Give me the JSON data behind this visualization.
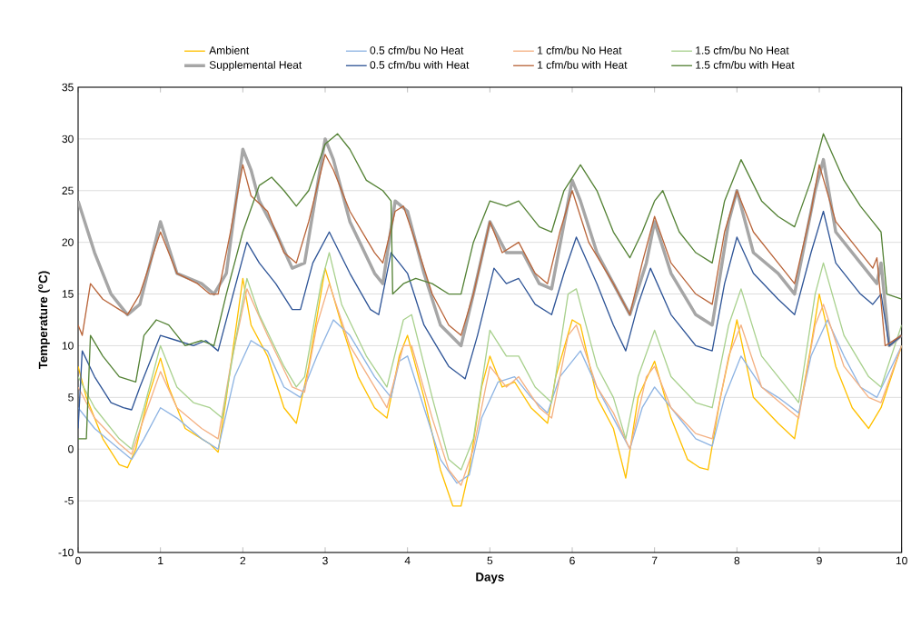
{
  "chart_data": {
    "type": "line",
    "xlabel": "Days",
    "ylabel": "Temperature ($^{o}$C)",
    "xlim": [
      0,
      10
    ],
    "ylim": [
      -10,
      35
    ],
    "xticks": [
      0,
      1,
      2,
      3,
      4,
      5,
      6,
      7,
      8,
      9,
      10
    ],
    "yticks": [
      -10,
      -5,
      0,
      5,
      10,
      15,
      20,
      25,
      30,
      35
    ],
    "grid": "y",
    "legend": "top",
    "series": [
      {
        "name": "Ambient",
        "color": "#ffc000",
        "x": [
          0,
          0.1,
          0.3,
          0.5,
          0.6,
          0.7,
          0.85,
          1.0,
          1.1,
          1.3,
          1.5,
          1.6,
          1.7,
          1.8,
          2.0,
          2.1,
          2.3,
          2.5,
          2.65,
          2.8,
          3.0,
          3.2,
          3.4,
          3.6,
          3.75,
          3.9,
          4.0,
          4.2,
          4.4,
          4.55,
          4.65,
          4.75,
          4.9,
          5.0,
          5.15,
          5.3,
          5.5,
          5.7,
          5.8,
          6.0,
          6.1,
          6.3,
          6.5,
          6.65,
          6.8,
          7.0,
          7.2,
          7.4,
          7.55,
          7.65,
          7.8,
          8.0,
          8.2,
          8.5,
          8.7,
          8.9,
          9.0,
          9.2,
          9.4,
          9.6,
          9.75,
          10.0
        ],
        "values": [
          8,
          5,
          1,
          -1.5,
          -1.8,
          0,
          5,
          8.8,
          6,
          2,
          1,
          0.5,
          -0.3,
          5,
          16.5,
          12,
          9,
          4,
          2.5,
          8,
          17.5,
          12,
          7,
          4,
          3,
          9,
          11,
          5,
          -2,
          -5.5,
          -5.5,
          -2,
          6,
          9,
          6,
          6.5,
          4,
          2.5,
          7,
          12.5,
          12,
          5,
          2,
          -2.8,
          5,
          8.5,
          3,
          -1,
          -1.8,
          -2,
          5,
          12.5,
          5,
          2.5,
          1,
          10,
          15,
          8,
          4,
          2,
          4,
          10
        ]
      },
      {
        "name": "0.5 cfm/bu No Heat",
        "color": "#8eb4e3",
        "x": [
          0,
          0.2,
          0.5,
          0.65,
          0.8,
          1.0,
          1.2,
          1.5,
          1.7,
          1.9,
          2.1,
          2.3,
          2.5,
          2.7,
          2.9,
          3.1,
          3.3,
          3.6,
          3.8,
          3.9,
          4.0,
          4.2,
          4.4,
          4.6,
          4.75,
          4.9,
          5.1,
          5.3,
          5.5,
          5.7,
          5.85,
          6.1,
          6.3,
          6.5,
          6.7,
          6.85,
          7.0,
          7.2,
          7.5,
          7.7,
          7.85,
          8.05,
          8.3,
          8.5,
          8.75,
          8.9,
          9.1,
          9.3,
          9.5,
          9.7,
          10.0
        ],
        "values": [
          4,
          2,
          0,
          -1,
          1,
          4,
          3,
          1,
          0,
          7,
          10.5,
          9.5,
          6,
          5,
          9,
          12.5,
          11,
          7,
          5,
          8.5,
          9,
          4,
          -1,
          -3.3,
          -2.5,
          3,
          6.5,
          7,
          5,
          3.5,
          7,
          9.5,
          6,
          3,
          0,
          4,
          6,
          4,
          1,
          0.3,
          5,
          9,
          6,
          5,
          3.5,
          9,
          12.5,
          9,
          6,
          5,
          10
        ]
      },
      {
        "name": "1 cfm/bu No Heat",
        "color": "#f4b183",
        "x": [
          0,
          0.2,
          0.5,
          0.65,
          0.8,
          1.0,
          1.2,
          1.5,
          1.7,
          1.85,
          2.05,
          2.3,
          2.6,
          2.75,
          2.9,
          3.05,
          3.3,
          3.6,
          3.75,
          3.95,
          4.05,
          4.3,
          4.5,
          4.65,
          4.8,
          5.0,
          5.2,
          5.35,
          5.6,
          5.75,
          5.95,
          6.05,
          6.3,
          6.5,
          6.7,
          6.9,
          7.0,
          7.2,
          7.5,
          7.7,
          7.9,
          8.05,
          8.3,
          8.6,
          8.75,
          8.95,
          9.05,
          9.3,
          9.6,
          9.75,
          10.0
        ],
        "values": [
          6,
          3,
          0.5,
          -0.5,
          3,
          7.5,
          4,
          2,
          1,
          8,
          15.5,
          11,
          6,
          5.5,
          12,
          16,
          10,
          6,
          4,
          10,
          10,
          3,
          -2,
          -3.5,
          0,
          8,
          6,
          7,
          4,
          3,
          11,
          12,
          6,
          3.5,
          0,
          7,
          8,
          4,
          1.5,
          1,
          9,
          12,
          6,
          4,
          3,
          12,
          14,
          8,
          5,
          4.5,
          10
        ]
      },
      {
        "name": "1.5 cfm/bu No Heat",
        "color": "#a9d18e",
        "x": [
          0,
          0.2,
          0.5,
          0.65,
          0.8,
          1.0,
          1.2,
          1.4,
          1.6,
          1.75,
          1.9,
          2.05,
          2.2,
          2.5,
          2.65,
          2.75,
          2.95,
          3.05,
          3.2,
          3.5,
          3.75,
          3.95,
          4.05,
          4.3,
          4.5,
          4.65,
          4.8,
          5.0,
          5.2,
          5.35,
          5.55,
          5.75,
          5.95,
          6.05,
          6.3,
          6.5,
          6.65,
          6.8,
          7.0,
          7.2,
          7.5,
          7.7,
          7.9,
          8.05,
          8.3,
          8.6,
          8.75,
          8.95,
          9.05,
          9.3,
          9.6,
          9.75,
          10.0
        ],
        "values": [
          7,
          4,
          1,
          0,
          4,
          10,
          6,
          4.5,
          4,
          3,
          10,
          16.5,
          13,
          8,
          6,
          7,
          16,
          19,
          14,
          9,
          6,
          12.5,
          13,
          5,
          -1,
          -2,
          1,
          11.5,
          9,
          9,
          6,
          4.5,
          15,
          15.5,
          8,
          5,
          1,
          7,
          11.5,
          7,
          4.5,
          4,
          12,
          15.5,
          9,
          6,
          4.5,
          15,
          18,
          11,
          7,
          6,
          12
        ]
      },
      {
        "name": "Supplemental Heat",
        "color": "#a6a6a6",
        "x": [
          0,
          0.2,
          0.4,
          0.6,
          0.75,
          1.0,
          1.2,
          1.5,
          1.65,
          1.8,
          2.0,
          2.1,
          2.2,
          2.4,
          2.6,
          2.75,
          3.0,
          3.1,
          3.3,
          3.6,
          3.7,
          3.85,
          4.0,
          4.2,
          4.4,
          4.65,
          4.8,
          5.0,
          5.2,
          5.4,
          5.6,
          5.75,
          6.0,
          6.1,
          6.3,
          6.5,
          6.7,
          6.9,
          7.0,
          7.2,
          7.5,
          7.7,
          7.9,
          8.0,
          8.2,
          8.5,
          8.7,
          8.95,
          9.05,
          9.2,
          9.5,
          9.7,
          9.75,
          9.85,
          10.0
        ],
        "values": [
          24,
          19,
          15,
          13,
          14,
          22,
          17,
          16,
          15,
          17,
          29,
          27,
          24,
          21,
          17.5,
          18,
          30,
          28,
          22,
          17,
          16,
          24,
          23,
          17,
          12,
          10,
          15,
          22,
          19,
          19,
          16,
          15.5,
          26,
          24,
          19,
          16,
          13,
          18,
          22,
          17,
          13,
          12,
          22,
          25,
          19,
          17,
          15,
          25,
          28,
          21,
          18,
          16,
          18,
          10,
          11
        ]
      },
      {
        "name": "0.5 cfm/bu with Heat",
        "color": "#2f5597",
        "x": [
          0,
          0.05,
          0.2,
          0.4,
          0.55,
          0.65,
          0.75,
          1.0,
          1.2,
          1.4,
          1.55,
          1.7,
          1.85,
          2.05,
          2.2,
          2.4,
          2.6,
          2.7,
          2.85,
          3.05,
          3.3,
          3.55,
          3.65,
          3.8,
          3.9,
          4.0,
          4.2,
          4.5,
          4.7,
          4.85,
          5.05,
          5.2,
          5.35,
          5.55,
          5.75,
          5.9,
          6.05,
          6.3,
          6.5,
          6.65,
          6.8,
          6.95,
          7.2,
          7.5,
          7.7,
          7.85,
          8.0,
          8.2,
          8.5,
          8.7,
          8.9,
          9.05,
          9.2,
          9.5,
          9.65,
          9.75,
          9.85,
          10.0
        ],
        "values": [
          2,
          9.5,
          7,
          4.5,
          4,
          3.8,
          6,
          11,
          10.5,
          10,
          10.5,
          9.5,
          14,
          20,
          18,
          16,
          13.5,
          13.5,
          18,
          21,
          17,
          13.5,
          13,
          19,
          18,
          17,
          12,
          8,
          6.8,
          11,
          17.5,
          16,
          16.5,
          14,
          13,
          17,
          20.5,
          16,
          12,
          9.5,
          14,
          17.5,
          13,
          10,
          9.5,
          16,
          20.5,
          17,
          14.5,
          13,
          19,
          23,
          18,
          15,
          14,
          15,
          10,
          11
        ]
      },
      {
        "name": "1 cfm/bu with Heat",
        "color": "#b9653a",
        "x": [
          0,
          0.05,
          0.15,
          0.3,
          0.5,
          0.6,
          0.75,
          1.0,
          1.2,
          1.45,
          1.6,
          1.7,
          1.85,
          2.0,
          2.1,
          2.3,
          2.5,
          2.65,
          2.8,
          3.0,
          3.1,
          3.3,
          3.6,
          3.7,
          3.85,
          3.95,
          4.1,
          4.3,
          4.5,
          4.65,
          4.8,
          5.0,
          5.15,
          5.35,
          5.55,
          5.7,
          5.85,
          6.0,
          6.2,
          6.5,
          6.7,
          6.85,
          7.0,
          7.2,
          7.5,
          7.7,
          7.85,
          8.0,
          8.2,
          8.5,
          8.7,
          8.9,
          9.0,
          9.2,
          9.5,
          9.65,
          9.7,
          9.8,
          10.0
        ],
        "values": [
          12,
          11,
          16,
          14.5,
          13.5,
          13,
          15,
          21,
          17,
          16,
          15,
          15,
          21,
          27.5,
          24.5,
          23,
          19,
          18,
          22,
          28.5,
          27,
          23,
          19,
          18,
          23,
          23.5,
          20,
          15,
          12,
          11,
          15,
          22,
          19,
          20,
          17,
          16,
          21,
          25,
          20,
          16,
          13,
          18,
          22.5,
          18,
          15,
          14,
          21,
          25,
          21,
          18,
          16,
          23,
          27.5,
          22,
          19,
          17.5,
          18.5,
          10,
          11
        ]
      },
      {
        "name": "1.5 cfm/bu with Heat",
        "color": "#548235",
        "x": [
          0,
          0.1,
          0.15,
          0.3,
          0.5,
          0.7,
          0.8,
          0.95,
          1.1,
          1.3,
          1.5,
          1.65,
          1.8,
          2.0,
          2.2,
          2.35,
          2.5,
          2.65,
          2.8,
          3.0,
          3.15,
          3.3,
          3.5,
          3.7,
          3.8,
          3.82,
          3.95,
          4.1,
          4.3,
          4.5,
          4.65,
          4.8,
          5.0,
          5.2,
          5.35,
          5.6,
          5.75,
          5.9,
          6.1,
          6.3,
          6.5,
          6.7,
          6.85,
          7.0,
          7.1,
          7.3,
          7.5,
          7.7,
          7.85,
          8.05,
          8.3,
          8.5,
          8.7,
          8.9,
          9.05,
          9.3,
          9.5,
          9.65,
          9.75,
          9.82,
          10.0
        ],
        "values": [
          1,
          1,
          11,
          9,
          7,
          6.5,
          11,
          12.5,
          12,
          10,
          10.5,
          10,
          15,
          21,
          25.5,
          26.3,
          25,
          23.5,
          25,
          29.5,
          30.5,
          29,
          26,
          25,
          24,
          15,
          16,
          16.5,
          16,
          15,
          15,
          20,
          24,
          23.5,
          24,
          21.5,
          21,
          25,
          27.5,
          25,
          21,
          18.5,
          21,
          24,
          25,
          21,
          19,
          18,
          24,
          28,
          24,
          22.5,
          21.5,
          26,
          30.5,
          26,
          23.5,
          22,
          21,
          15,
          14.5
        ]
      }
    ]
  }
}
